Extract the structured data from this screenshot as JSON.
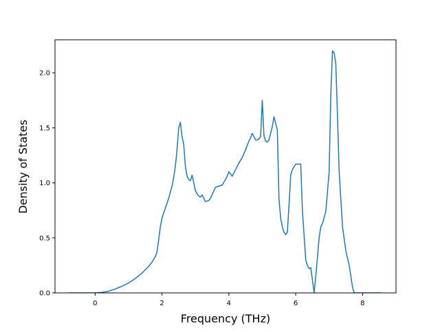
{
  "colors": {
    "line": "#1f77b4",
    "axes": "#000000",
    "background": "#ffffff"
  },
  "chart_data": {
    "type": "line",
    "title": "",
    "xlabel": "Frequency (THz)",
    "ylabel": "Density of States",
    "xlim": [
      -1.2,
      9.0
    ],
    "ylim": [
      0.0,
      2.3
    ],
    "grid": false,
    "x_ticks": [
      {
        "value": 0,
        "label": "0"
      },
      {
        "value": 2,
        "label": "2"
      },
      {
        "value": 4,
        "label": "4"
      },
      {
        "value": 6,
        "label": "6"
      },
      {
        "value": 8,
        "label": "8"
      }
    ],
    "y_ticks": [
      {
        "value": 0.0,
        "label": "0.0"
      },
      {
        "value": 0.5,
        "label": "0.5"
      },
      {
        "value": 1.0,
        "label": "1.0"
      },
      {
        "value": 1.5,
        "label": "1.5"
      },
      {
        "value": 2.0,
        "label": "2.0"
      }
    ],
    "series": [
      {
        "x": [
          -0.77,
          0.0,
          0.2,
          0.4,
          0.6,
          0.8,
          1.0,
          1.2,
          1.4,
          1.6,
          1.7,
          1.8,
          1.85,
          1.9,
          1.95,
          2.0,
          2.1,
          2.2,
          2.3,
          2.35,
          2.4,
          2.45,
          2.5,
          2.55,
          2.6,
          2.65,
          2.7,
          2.75,
          2.8,
          2.85,
          2.9,
          3.0,
          3.05,
          3.1,
          3.15,
          3.2,
          3.3,
          3.4,
          3.45,
          3.6,
          3.7,
          3.8,
          3.9,
          3.95,
          4.0,
          4.1,
          4.2,
          4.3,
          4.4,
          4.5,
          4.55,
          4.6,
          4.65,
          4.7,
          4.8,
          4.85,
          4.9,
          4.95,
          5.0,
          5.05,
          5.1,
          5.15,
          5.2,
          5.3,
          5.35,
          5.4,
          5.45,
          5.5,
          5.55,
          5.6,
          5.65,
          5.7,
          5.75,
          5.8,
          5.85,
          5.9,
          6.0,
          6.1,
          6.15,
          6.2,
          6.3,
          6.35,
          6.4,
          6.45,
          6.5,
          6.55,
          6.6,
          6.7,
          6.75,
          6.8,
          6.9,
          7.0,
          7.05,
          7.1,
          7.15,
          7.2,
          7.25,
          7.3,
          7.35,
          7.4,
          7.5,
          7.6,
          7.65,
          7.7,
          7.75,
          8.56
        ],
        "y": [
          0.0,
          0.0,
          0.005,
          0.015,
          0.035,
          0.06,
          0.09,
          0.13,
          0.18,
          0.24,
          0.28,
          0.33,
          0.37,
          0.48,
          0.6,
          0.68,
          0.77,
          0.86,
          0.97,
          1.05,
          1.15,
          1.3,
          1.5,
          1.55,
          1.42,
          1.35,
          1.15,
          1.06,
          1.03,
          1.02,
          1.07,
          0.93,
          0.9,
          0.88,
          0.87,
          0.89,
          0.83,
          0.84,
          0.86,
          0.96,
          0.97,
          0.98,
          1.03,
          1.06,
          1.1,
          1.06,
          1.12,
          1.18,
          1.23,
          1.3,
          1.34,
          1.38,
          1.41,
          1.45,
          1.39,
          1.39,
          1.4,
          1.42,
          1.75,
          1.43,
          1.38,
          1.37,
          1.39,
          1.51,
          1.6,
          1.54,
          1.48,
          0.85,
          0.68,
          0.6,
          0.55,
          0.53,
          0.55,
          0.8,
          1.07,
          1.12,
          1.17,
          1.17,
          1.17,
          0.75,
          0.3,
          0.25,
          0.22,
          0.23,
          0.12,
          0.0,
          0.15,
          0.5,
          0.6,
          0.63,
          0.74,
          1.1,
          1.8,
          2.2,
          2.18,
          2.08,
          1.6,
          1.1,
          0.85,
          0.6,
          0.38,
          0.25,
          0.15,
          0.05,
          0.0,
          0.0
        ]
      }
    ]
  }
}
